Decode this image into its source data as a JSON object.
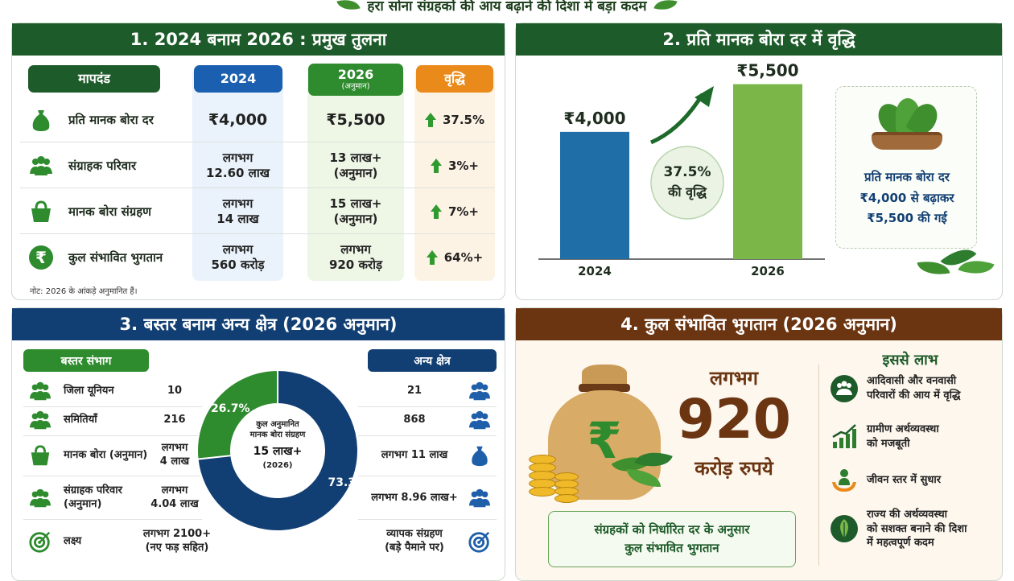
{
  "header": {
    "title": "हरा सोना संग्रहकों की आय बढ़ाने की दिशा में बड़ा कदम"
  },
  "colors": {
    "green": "#1e5b2a",
    "blue": "#123f73",
    "brown": "#6b3512",
    "orange": "#e98a1a",
    "light_green": "#7ab648"
  },
  "panel1": {
    "title": "1. 2024 बनाम 2026 : प्रमुख तुलना",
    "col_criteria": "मापदंड",
    "col_2024": "2024",
    "col_2026": "2026",
    "col_2026_sub": "(अनुमान)",
    "col_growth": "वृद्धि",
    "rows": [
      {
        "icon": "money-bag-icon",
        "label": "प्रति मानक बोरा दर",
        "v2024": "₹4,000",
        "v2026": "₹5,500",
        "growth": "37.5%"
      },
      {
        "icon": "people-group-icon",
        "label": "संग्राहक परिवार",
        "v2024": "लगभग\n12.60 लाख",
        "v2026": "13 लाख+\n(अनुमान)",
        "growth": "3%+"
      },
      {
        "icon": "basket-icon",
        "label": "मानक बोरा संग्रहण",
        "v2024": "लगभग\n14 लाख",
        "v2026": "15 लाख+\n(अनुमान)",
        "growth": "7%+"
      },
      {
        "icon": "rupee-coin-icon",
        "label": "कुल संभावित भुगतान",
        "v2024": "लगभग\n560 करोड़",
        "v2026": "लगभग\n920 करोड़",
        "growth": "64%+"
      }
    ],
    "note": "नोट: 2026 के आंकड़े अनुमानित हैं।"
  },
  "panel2": {
    "title": "2. प्रति मानक बोरा दर में वृद्धि",
    "chart_data": {
      "type": "bar",
      "categories": [
        "2024",
        "2026"
      ],
      "values": [
        4000,
        5500
      ],
      "value_labels": [
        "₹4,000",
        "₹5,500"
      ],
      "colors": [
        "#1f6ea8",
        "#7ab648"
      ],
      "ylim": [
        0,
        6400
      ]
    },
    "growth_circle": {
      "value": "37.5%",
      "label": "की वृद्धि"
    },
    "info_box": "प्रति मानक बोरा दर\n₹4,000 से बढ़ाकर\n₹5,500 की गई"
  },
  "panel3": {
    "title": "3. बस्तर बनाम अन्य क्षेत्र (2026 अनुमान)",
    "left_tag": "बस्तर संभाग",
    "right_tag": "अन्य क्षेत्र",
    "rows": [
      {
        "label": "जिला यूनियन",
        "bastar": "10",
        "other": "21"
      },
      {
        "label": "समितियाँ",
        "bastar": "216",
        "other": "868"
      },
      {
        "label": "मानक बोरा (अनुमान)",
        "bastar": "लगभग\n4 लाख",
        "other": "लगभग 11 लाख"
      },
      {
        "label": "संग्राहक परिवार\n(अनुमान)",
        "bastar": "लगभग\n4.04 लाख",
        "other": "लगभग 8.96 लाख+"
      },
      {
        "label": "लक्ष्य",
        "bastar": "लगभग 2100+\n(नए फड़ सहित)",
        "other": "व्यापक संग्रहण\n(बड़े पैमाने पर)"
      }
    ],
    "donut": {
      "center_title": "कुल अनुमानित\nमानक बोरा संग्रहण",
      "center_value": "15 लाख+",
      "center_sub": "(2026)"
    },
    "chart_data": {
      "type": "pie",
      "categories": [
        "बस्तर संभाग",
        "अन्य क्षेत्र"
      ],
      "values": [
        26.7,
        73.3
      ],
      "labels": [
        "26.7%",
        "73.3%"
      ],
      "colors": [
        "#2e8b2e",
        "#123f73"
      ]
    }
  },
  "panel4": {
    "title": "4. कुल संभावित भुगतान (2026 अनुमान)",
    "approx": "लगभग",
    "amount": "920",
    "unit": "करोड़ रुपये",
    "rupee_symbol": "₹",
    "caption": "संग्रहकों को निर्धारित दर के अनुसार\nकुल संभावित भुगतान",
    "benefits_title": "इससे लाभ",
    "benefits": [
      {
        "icon": "people-circle-icon",
        "text": "आदिवासी और वनवासी\nपरिवारों की आय में वृद्धि"
      },
      {
        "icon": "growth-chart-icon",
        "text": "ग्रामीण अर्थव्यवस्था\nको मजबूती"
      },
      {
        "icon": "person-hands-icon",
        "text": "जीवन स्तर में सुधार"
      },
      {
        "icon": "leaf-circle-icon",
        "text": "राज्य की अर्थव्यवस्था\nको सशक्त बनाने की दिशा\nमें महत्वपूर्ण कदम"
      }
    ]
  }
}
